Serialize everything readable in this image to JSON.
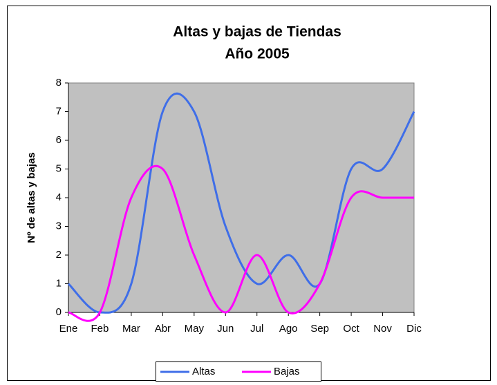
{
  "chart_data": {
    "type": "line",
    "title": "Altas y bajas de Tiendas",
    "subtitle": "Año 2005",
    "y_label": "Nº de altas y bajas",
    "categories": [
      "Ene",
      "Feb",
      "Mar",
      "Abr",
      "May",
      "Jun",
      "Jul",
      "Ago",
      "Sep",
      "Oct",
      "Nov",
      "Dic"
    ],
    "series": [
      {
        "name": "Altas",
        "color": "#3f6ee8",
        "values": [
          1,
          0,
          1,
          7,
          7,
          3,
          1,
          2,
          1,
          5,
          5,
          7
        ]
      },
      {
        "name": "Bajas",
        "color": "#ff00ff",
        "values": [
          0,
          0,
          4,
          5,
          2,
          0,
          2,
          0,
          1,
          4,
          4,
          4
        ]
      }
    ],
    "ylim": [
      0,
      8
    ],
    "yticks": [
      0,
      1,
      2,
      3,
      4,
      5,
      6,
      7,
      8
    ],
    "smooth": true,
    "legend": "bottom"
  }
}
